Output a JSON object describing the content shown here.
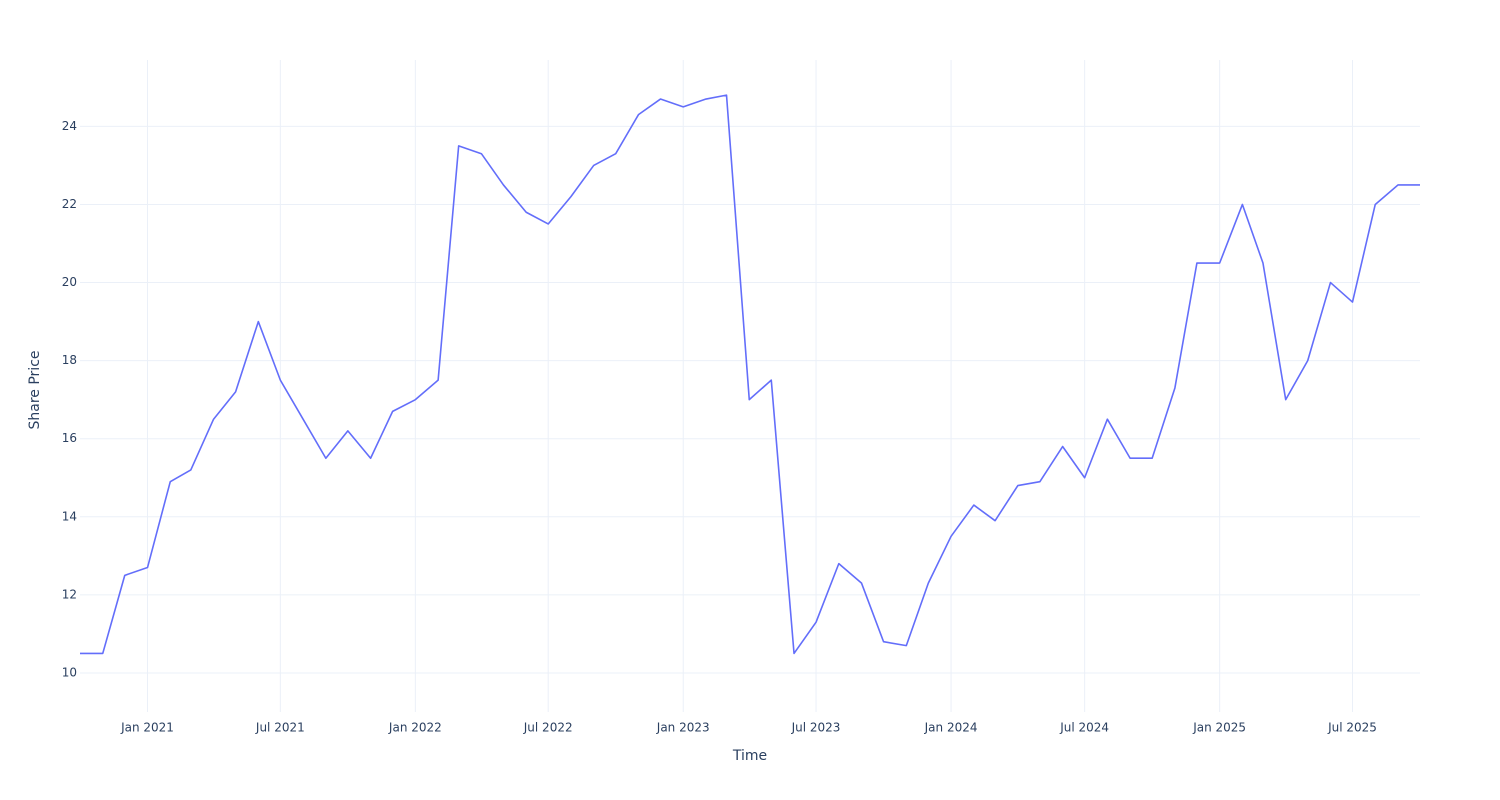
{
  "chart_data": {
    "type": "line",
    "x_label": "Time",
    "y_label": "Share Price",
    "x": [
      "2020-10",
      "2020-11",
      "2020-12",
      "2021-01",
      "2021-02",
      "2021-03",
      "2021-04",
      "2021-05",
      "2021-06",
      "2021-07",
      "2021-08",
      "2021-09",
      "2021-10",
      "2021-11",
      "2021-12",
      "2022-01",
      "2022-02",
      "2022-03",
      "2022-04",
      "2022-05",
      "2022-06",
      "2022-07",
      "2022-08",
      "2022-09",
      "2022-10",
      "2022-11",
      "2022-12",
      "2023-01",
      "2023-02",
      "2023-03",
      "2023-04",
      "2023-05",
      "2023-06",
      "2023-07",
      "2023-08",
      "2023-09",
      "2023-10",
      "2023-11",
      "2023-12",
      "2024-01",
      "2024-02",
      "2024-03",
      "2024-04",
      "2024-05",
      "2024-06",
      "2024-07",
      "2024-08",
      "2024-09",
      "2024-10",
      "2024-11",
      "2024-12",
      "2025-01",
      "2025-02",
      "2025-03",
      "2025-04",
      "2025-05",
      "2025-06",
      "2025-07",
      "2025-08",
      "2025-09",
      "2025-10"
    ],
    "series": [
      {
        "name": "Share Price",
        "color": "#636efa",
        "values": [
          10.5,
          10.5,
          12.5,
          12.7,
          14.9,
          15.2,
          16.5,
          17.2,
          19.0,
          17.5,
          16.5,
          15.5,
          16.2,
          15.5,
          16.7,
          17.0,
          17.5,
          23.5,
          23.3,
          22.5,
          21.8,
          21.5,
          22.2,
          23.0,
          23.3,
          24.3,
          24.7,
          24.5,
          24.7,
          24.8,
          17.0,
          17.5,
          10.5,
          11.3,
          12.8,
          12.3,
          10.8,
          10.7,
          12.3,
          13.5,
          14.3,
          13.9,
          14.8,
          14.9,
          15.8,
          15.0,
          16.5,
          15.5,
          15.5,
          17.3,
          20.5,
          20.5,
          22.0,
          20.5,
          17.0,
          18.0,
          20.0,
          19.5,
          22.0,
          22.5,
          22.5
        ]
      }
    ],
    "xlim": [
      "2020-10",
      "2025-10"
    ],
    "xticks": [
      {
        "value": "2021-01",
        "label": "Jan 2021"
      },
      {
        "value": "2021-07",
        "label": "Jul 2021"
      },
      {
        "value": "2022-01",
        "label": "Jan 2022"
      },
      {
        "value": "2022-07",
        "label": "Jul 2022"
      },
      {
        "value": "2023-01",
        "label": "Jan 2023"
      },
      {
        "value": "2023-07",
        "label": "Jul 2023"
      },
      {
        "value": "2024-01",
        "label": "Jan 2024"
      },
      {
        "value": "2024-07",
        "label": "Jul 2024"
      },
      {
        "value": "2025-01",
        "label": "Jan 2025"
      },
      {
        "value": "2025-07",
        "label": "Jul 2025"
      }
    ],
    "ylim": [
      9,
      25.7
    ],
    "yticks": [
      10,
      12,
      14,
      16,
      18,
      20,
      22,
      24
    ],
    "grid": true
  }
}
